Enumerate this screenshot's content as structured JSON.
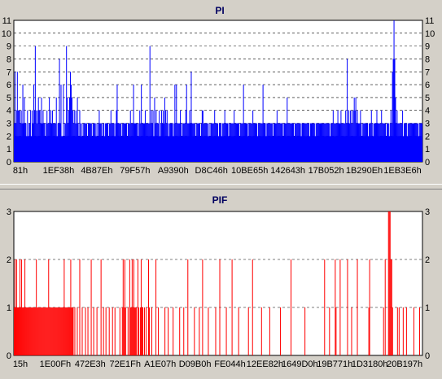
{
  "colors": {
    "background": "#d4d0c8",
    "plot_area": "#ffffff",
    "pi_bars": "#0000ff",
    "pif_bars": "#ff0000",
    "grid": "#000000"
  },
  "chart_data": [
    {
      "id": "pi",
      "type": "bar",
      "title": "PI",
      "xlabel": "",
      "ylabel": "",
      "ylim": [
        0,
        11
      ],
      "yticks": [
        0,
        1,
        2,
        3,
        4,
        5,
        6,
        7,
        8,
        9,
        10,
        11
      ],
      "xtick_labels": [
        "81h",
        "1EF38h",
        "4B87Eh",
        "79F57h",
        "A9390h",
        "D8C46h",
        "10BE65h",
        "142643h",
        "17B052h",
        "1B290Eh",
        "1EB3E6h"
      ],
      "grid": "dashed horizontal at each integer",
      "bar_count": 500,
      "baseline": 2,
      "values": [
        3,
        7,
        3,
        4,
        7,
        4,
        4,
        4,
        3,
        4,
        3,
        6,
        3,
        5,
        3,
        3,
        2,
        4,
        2,
        3,
        3,
        4,
        2,
        4,
        3,
        6,
        4,
        9,
        4,
        3,
        4,
        5,
        4,
        4,
        3,
        5,
        3,
        4,
        3,
        3,
        2,
        3,
        4,
        3,
        3,
        5,
        3,
        4,
        3,
        4,
        3,
        3,
        3,
        3,
        5,
        2,
        3,
        3,
        8,
        3,
        6,
        2,
        2,
        6,
        2,
        3,
        3,
        9,
        5,
        3,
        4,
        5,
        7,
        6,
        5,
        4,
        3,
        4,
        3,
        4,
        3,
        5,
        3,
        2,
        4,
        3,
        2,
        3,
        2,
        3,
        3,
        3,
        3,
        3,
        2,
        3,
        3,
        3,
        3,
        3,
        2,
        3,
        3,
        3,
        3,
        2,
        3,
        2,
        3,
        4,
        3,
        3,
        3,
        2,
        3,
        3,
        2,
        3,
        3,
        3,
        3,
        2,
        3,
        3,
        4,
        3,
        3,
        3,
        3,
        2,
        3,
        4,
        6,
        3,
        3,
        3,
        3,
        3,
        1,
        3,
        3,
        3,
        3,
        3,
        3,
        2,
        3,
        3,
        3,
        4,
        3,
        3,
        3,
        6,
        3,
        3,
        3,
        3,
        3,
        2,
        3,
        4,
        3,
        6,
        3,
        3,
        3,
        3,
        4,
        3,
        3,
        3,
        3,
        3,
        9,
        3,
        4,
        3,
        4,
        2,
        5,
        3,
        4,
        3,
        3,
        3,
        4,
        2,
        3,
        4,
        3,
        4,
        3,
        5,
        4,
        3,
        4,
        3,
        2,
        3,
        3,
        3,
        3,
        3,
        1,
        3,
        6,
        3,
        6,
        3,
        3,
        3,
        3,
        4,
        3,
        2,
        3,
        3,
        3,
        3,
        4,
        6,
        3,
        3,
        3,
        4,
        3,
        7,
        3,
        3,
        3,
        3,
        3,
        2,
        3,
        3,
        3,
        3,
        3,
        2,
        3,
        4,
        4,
        3,
        3,
        3,
        3,
        3,
        3,
        1,
        3,
        2,
        3,
        3,
        3,
        3,
        3,
        4,
        3,
        3,
        3,
        3,
        2,
        3,
        3,
        3,
        2,
        3,
        3,
        3,
        4,
        3,
        3,
        3,
        3,
        2,
        3,
        3,
        3,
        3,
        3,
        3,
        4,
        3,
        3,
        3,
        3,
        3,
        3,
        2,
        3,
        3,
        3,
        3,
        6,
        3,
        3,
        3,
        3,
        3,
        2,
        3,
        3,
        3,
        3,
        3,
        4,
        3,
        3,
        3,
        3,
        3,
        2,
        3,
        3,
        3,
        3,
        3,
        3,
        6,
        3,
        3,
        3,
        2,
        3,
        3,
        3,
        3,
        3,
        3,
        3,
        3,
        2,
        3,
        3,
        3,
        3,
        4,
        3,
        3,
        3,
        3,
        3,
        3,
        3,
        2,
        3,
        3,
        3,
        3,
        5,
        3,
        3,
        3,
        3,
        3,
        3,
        3,
        3,
        2,
        3,
        3,
        3,
        3,
        3,
        3,
        3,
        3,
        2,
        3,
        3,
        3,
        3,
        3,
        3,
        3,
        3,
        3,
        3,
        2,
        3,
        3,
        3,
        3,
        3,
        3,
        2,
        3,
        3,
        3,
        3,
        3,
        3,
        3,
        3,
        3,
        3,
        3,
        3,
        3,
        3,
        3,
        3,
        3,
        3,
        1,
        3,
        3,
        3,
        4,
        3,
        3,
        3,
        3,
        3,
        4,
        3,
        3,
        3,
        4,
        3,
        3,
        3,
        3,
        3,
        4,
        3,
        8,
        3,
        4,
        3,
        4,
        3,
        4,
        3,
        4,
        5,
        4,
        5,
        3,
        4,
        3,
        3,
        3,
        4,
        3,
        2,
        3,
        3,
        3,
        3,
        3,
        3,
        3,
        2,
        3,
        3,
        3,
        4,
        3,
        2,
        3,
        3,
        3,
        3,
        4,
        3,
        3,
        3,
        3,
        3,
        4,
        3,
        3,
        3,
        3,
        3,
        2,
        3,
        3,
        3,
        2,
        3,
        4,
        3,
        7,
        8,
        11,
        8,
        5,
        3,
        4,
        3,
        3,
        3,
        3,
        3,
        3,
        4,
        2,
        3,
        3,
        3,
        3,
        2,
        3,
        3,
        3,
        3,
        3,
        3,
        3,
        3,
        3,
        3,
        3,
        3,
        3,
        3,
        2,
        3,
        3,
        3,
        3
      ]
    },
    {
      "id": "pif",
      "type": "bar",
      "title": "PIF",
      "xlabel": "",
      "ylabel": "",
      "ylim": [
        0,
        3
      ],
      "yticks": [
        0,
        1,
        2,
        3
      ],
      "xtick_labels": [
        "15h",
        "1E00Fh",
        "472E3h",
        "72E1Fh",
        "A1E07h",
        "D09B0h",
        "FE044h",
        "12EE82h",
        "1649D0h",
        "19B771h",
        "1D3180h",
        "20B197h"
      ],
      "grid": "dashed horizontal at each integer",
      "bar_count": 500,
      "values": [
        1,
        2,
        1,
        2,
        1,
        1,
        1,
        2,
        1,
        2,
        1,
        1,
        1,
        2,
        1,
        1,
        1,
        1,
        1,
        1,
        1,
        1,
        1,
        1,
        1,
        1,
        1,
        2,
        1,
        1,
        1,
        1,
        1,
        1,
        1,
        1,
        1,
        1,
        1,
        1,
        1,
        1,
        2,
        1,
        1,
        1,
        1,
        1,
        1,
        1,
        1,
        1,
        1,
        1,
        1,
        1,
        1,
        1,
        1,
        1,
        1,
        2,
        1,
        1,
        1,
        1,
        1,
        1,
        1,
        2,
        1,
        1,
        1,
        0,
        1,
        0,
        0,
        1,
        0,
        0,
        2,
        0,
        0,
        1,
        0,
        0,
        0,
        1,
        0,
        0,
        1,
        0,
        0,
        0,
        2,
        0,
        0,
        1,
        0,
        0,
        0,
        1,
        0,
        0,
        0,
        0,
        2,
        0,
        0,
        1,
        0,
        0,
        1,
        0,
        0,
        0,
        1,
        0,
        0,
        0,
        1,
        0,
        0,
        1,
        0,
        0,
        0,
        0,
        0,
        1,
        0,
        0,
        1,
        2,
        1,
        2,
        1,
        0,
        0,
        1,
        0,
        2,
        1,
        1,
        2,
        1,
        2,
        1,
        1,
        1,
        0,
        2,
        1,
        0,
        1,
        2,
        1,
        1,
        0,
        1,
        0,
        1,
        0,
        0,
        2,
        1,
        0,
        0,
        1,
        0,
        0,
        0,
        0,
        2,
        0,
        0,
        1,
        0,
        0,
        0,
        0,
        0,
        0,
        0,
        1,
        0,
        0,
        0,
        1,
        0,
        0,
        0,
        0,
        0,
        1,
        0,
        0,
        0,
        0,
        0,
        0,
        0,
        1,
        0,
        0,
        0,
        0,
        1,
        0,
        0,
        0,
        0,
        2,
        0,
        0,
        0,
        0,
        0,
        0,
        0,
        1,
        0,
        0,
        0,
        0,
        0,
        1,
        0,
        0,
        0,
        2,
        0,
        0,
        0,
        0,
        0,
        0,
        1,
        0,
        0,
        0,
        0,
        0,
        0,
        0,
        0,
        1,
        0,
        0,
        0,
        0,
        2,
        0,
        0,
        0,
        0,
        0,
        0,
        0,
        1,
        0,
        0,
        0,
        0,
        0,
        0,
        2,
        0,
        0,
        0,
        0,
        0,
        0,
        0,
        1,
        0,
        0,
        0,
        0,
        0,
        0,
        0,
        0,
        0,
        0,
        0,
        1,
        0,
        0,
        0,
        0,
        2,
        0,
        0,
        0,
        0,
        0,
        0,
        0,
        0,
        0,
        0,
        1,
        0,
        0,
        0,
        0,
        0,
        0,
        0,
        0,
        0,
        1,
        0,
        0,
        0,
        0,
        0,
        0,
        0,
        0,
        0,
        0,
        0,
        0,
        1,
        0,
        0,
        0,
        0,
        0,
        0,
        0,
        0,
        0,
        0,
        0,
        0,
        2,
        0,
        0,
        0,
        0,
        0,
        0,
        0,
        0,
        0,
        0,
        0,
        0,
        0,
        0,
        0,
        0,
        1,
        0,
        0,
        0,
        0,
        0,
        0,
        0,
        0,
        0,
        0,
        0,
        0,
        0,
        0,
        0,
        0,
        0,
        0,
        0,
        0,
        0,
        0,
        0,
        2,
        0,
        0,
        0,
        0,
        0,
        1,
        0,
        0,
        0,
        0,
        0,
        0,
        2,
        1,
        0,
        0,
        0,
        0,
        2,
        0,
        0,
        0,
        0,
        0,
        0,
        0,
        0,
        2,
        0,
        0,
        0,
        0,
        1,
        0,
        0,
        0,
        0,
        0,
        0,
        2,
        0,
        0,
        0,
        0,
        0,
        0,
        0,
        0,
        0,
        0,
        0,
        0,
        0,
        1,
        2,
        0,
        0,
        0,
        0,
        0,
        0,
        0,
        0,
        0,
        0,
        0,
        0,
        0,
        0,
        0,
        0,
        1,
        0,
        2,
        0,
        0,
        0,
        3,
        3,
        3,
        2,
        2,
        1,
        0,
        0,
        0,
        0,
        0,
        1,
        0,
        1,
        0,
        0,
        0,
        0,
        1,
        0,
        0,
        0,
        1,
        0,
        0,
        0,
        0,
        0,
        0,
        0,
        0,
        1,
        0,
        0,
        0,
        0,
        0,
        0,
        1,
        0,
        0,
        0
      ]
    }
  ]
}
